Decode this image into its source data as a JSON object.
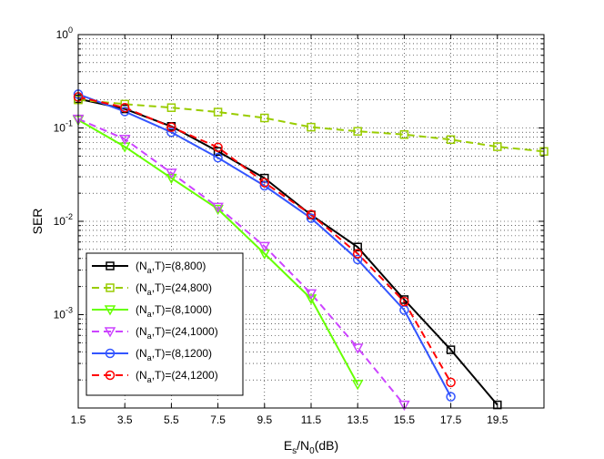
{
  "chart_data": {
    "type": "line",
    "xscale": "linear",
    "yscale": "log",
    "xlabel": {
      "main": "E",
      "sub1": "s",
      "mid": "/N",
      "sub2": "0",
      "tail": "(dB)"
    },
    "ylabel": "SER",
    "xlim": [
      1.5,
      21.5
    ],
    "ylim": [
      0.0001,
      1
    ],
    "xticks": [
      1.5,
      3.5,
      5.5,
      7.5,
      9.5,
      11.5,
      13.5,
      15.5,
      17.5,
      19.5
    ],
    "xtick_labels": [
      "1.5",
      "3.5",
      "5.5",
      "7.5",
      "9.5",
      "11.5",
      "13.5",
      "15.5",
      "17.5",
      "19.5"
    ],
    "yticks": [
      {
        "value": 0.001,
        "base": "10",
        "exp": "-3"
      },
      {
        "value": 0.01,
        "base": "10",
        "exp": "-2"
      },
      {
        "value": 0.1,
        "base": "10",
        "exp": "-1"
      },
      {
        "value": 1,
        "base": "10",
        "exp": "0"
      }
    ],
    "grid": true,
    "legend_position": "bottom-left",
    "series": [
      {
        "name": "(N_a,T)=(8,800)",
        "label_pre": "(N",
        "label_sub": "a",
        "label_post": ",T)=(8,800)",
        "color": "#000000",
        "marker": "square",
        "dash": "solid",
        "x": [
          1.5,
          3.5,
          5.5,
          7.5,
          9.5,
          11.5,
          13.5,
          15.5,
          17.5,
          19.5
        ],
        "y": [
          0.205,
          0.16,
          0.104,
          0.056,
          0.029,
          0.0117,
          0.0053,
          0.00145,
          0.00042,
          0.000108
        ]
      },
      {
        "name": "(N_a,T)=(24,800)",
        "label_pre": "(N",
        "label_sub": "a",
        "label_post": ",T)=(24,800)",
        "color": "#99cc00",
        "marker": "square",
        "dash": "dashed",
        "x": [
          1.5,
          3.5,
          5.5,
          7.5,
          9.5,
          11.5,
          13.5,
          15.5,
          17.5,
          19.5,
          21.5
        ],
        "y": [
          0.2,
          0.18,
          0.165,
          0.148,
          0.128,
          0.102,
          0.092,
          0.085,
          0.075,
          0.063,
          0.056
        ]
      },
      {
        "name": "(N_a,T)=(8,1000)",
        "label_pre": "(N",
        "label_sub": "a",
        "label_post": ",T)=(8,1000)",
        "color": "#66ff00",
        "marker": "triangle-down",
        "dash": "solid",
        "x": [
          1.5,
          3.5,
          5.5,
          7.5,
          9.5,
          11.5,
          13.5
        ],
        "y": [
          0.122,
          0.063,
          0.029,
          0.0135,
          0.0045,
          0.00148,
          0.00018
        ]
      },
      {
        "name": "(N_a,T)=(24,1000)",
        "label_pre": "(N",
        "label_sub": "a",
        "label_post": ",T)=(24,1000)",
        "color": "#cc44ff",
        "marker": "triangle-down",
        "dash": "dashed",
        "x": [
          1.5,
          3.5,
          5.5,
          7.5,
          9.5,
          11.5,
          13.5,
          15.5
        ],
        "y": [
          0.125,
          0.076,
          0.033,
          0.0142,
          0.0054,
          0.00168,
          0.00044,
          0.000108
        ]
      },
      {
        "name": "(N_a,T)=(8,1200)",
        "label_pre": "(N",
        "label_sub": "a",
        "label_post": ",T)=(8,1200)",
        "color": "#3355ff",
        "marker": "circle",
        "dash": "solid",
        "x": [
          1.5,
          3.5,
          5.5,
          7.5,
          9.5,
          11.5,
          13.5,
          15.5,
          17.5
        ],
        "y": [
          0.23,
          0.15,
          0.09,
          0.048,
          0.024,
          0.0108,
          0.0039,
          0.00112,
          0.000132
        ]
      },
      {
        "name": "(N_a,T)=(24,1200)",
        "label_pre": "(N",
        "label_sub": "a",
        "label_post": ",T)=(24,1200)",
        "color": "#ff0000",
        "marker": "circle",
        "dash": "dashed",
        "x": [
          1.5,
          3.5,
          5.5,
          7.5,
          9.5,
          11.5,
          13.5,
          15.5,
          17.5
        ],
        "y": [
          0.215,
          0.165,
          0.102,
          0.062,
          0.026,
          0.0118,
          0.0045,
          0.00138,
          0.000188
        ]
      }
    ]
  }
}
